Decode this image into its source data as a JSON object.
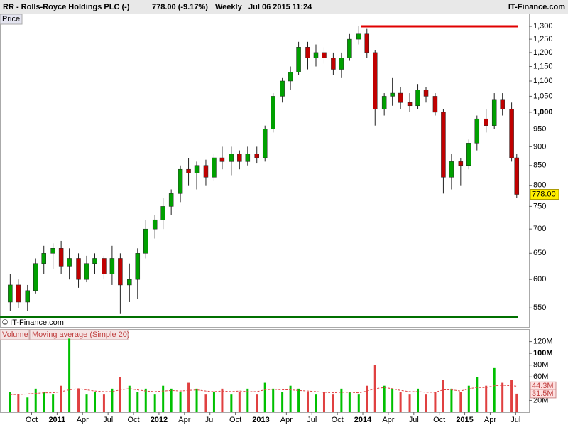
{
  "header": {
    "title": "RR - Rolls-Royce Holdings PLC (-)",
    "quote": "778.00 (-9.17%)",
    "period": "Weekly",
    "date": "Jul 06 2015 11:24",
    "brand": "IT-Finance.com"
  },
  "chart_data": [
    {
      "type": "candlestick",
      "tab": "Price",
      "copyright": "© IT-Finance.com",
      "log_scale": true,
      "up_color": "#00a000",
      "down_color": "#c00000",
      "x": [
        2010.54,
        2010.62,
        2010.71,
        2010.79,
        2010.87,
        2010.96,
        2011.04,
        2011.12,
        2011.21,
        2011.29,
        2011.37,
        2011.46,
        2011.54,
        2011.62,
        2011.71,
        2011.79,
        2011.87,
        2011.96,
        2012.04,
        2012.12,
        2012.21,
        2012.29,
        2012.37,
        2012.46,
        2012.54,
        2012.62,
        2012.71,
        2012.79,
        2012.87,
        2012.96,
        2013.04,
        2013.12,
        2013.21,
        2013.29,
        2013.37,
        2013.46,
        2013.54,
        2013.62,
        2013.71,
        2013.79,
        2013.87,
        2013.96,
        2014.04,
        2014.12,
        2014.21,
        2014.29,
        2014.37,
        2014.46,
        2014.54,
        2014.62,
        2014.71,
        2014.79,
        2014.87,
        2014.96,
        2015.04,
        2015.12,
        2015.21,
        2015.29,
        2015.37,
        2015.46,
        2015.51
      ],
      "open": [
        560,
        590,
        560,
        580,
        630,
        650,
        660,
        625,
        640,
        600,
        630,
        640,
        610,
        640,
        590,
        600,
        650,
        700,
        720,
        750,
        780,
        840,
        830,
        850,
        820,
        870,
        860,
        880,
        860,
        880,
        870,
        950,
        1050,
        1100,
        1130,
        1220,
        1180,
        1200,
        1180,
        1140,
        1180,
        1250,
        1270,
        1200,
        1010,
        1050,
        1060,
        1030,
        1020,
        1070,
        1050,
        1000,
        820,
        860,
        850,
        910,
        980,
        960,
        1040,
        1010,
        870
      ],
      "high": [
        610,
        600,
        590,
        640,
        665,
        670,
        675,
        660,
        650,
        645,
        650,
        645,
        665,
        650,
        630,
        660,
        720,
        730,
        770,
        790,
        850,
        870,
        860,
        865,
        880,
        900,
        900,
        890,
        900,
        900,
        960,
        1060,
        1110,
        1150,
        1240,
        1240,
        1230,
        1220,
        1200,
        1200,
        1270,
        1300,
        1290,
        1210,
        1060,
        1110,
        1080,
        1060,
        1090,
        1080,
        1060,
        1010,
        880,
        870,
        920,
        990,
        1010,
        1060,
        1060,
        1030,
        880
      ],
      "low": [
        545,
        550,
        545,
        575,
        610,
        620,
        610,
        600,
        585,
        595,
        610,
        600,
        590,
        540,
        560,
        565,
        640,
        680,
        700,
        730,
        760,
        800,
        790,
        800,
        810,
        840,
        825,
        840,
        850,
        855,
        860,
        940,
        1030,
        1070,
        1120,
        1140,
        1150,
        1160,
        1120,
        1110,
        1170,
        1230,
        1180,
        960,
        990,
        1020,
        1010,
        1000,
        1010,
        1030,
        990,
        780,
        790,
        800,
        840,
        890,
        940,
        950,
        990,
        860,
        770
      ],
      "close": [
        590,
        560,
        580,
        630,
        650,
        660,
        625,
        640,
        600,
        630,
        640,
        610,
        640,
        590,
        600,
        650,
        700,
        720,
        750,
        780,
        840,
        830,
        850,
        820,
        870,
        860,
        880,
        860,
        880,
        870,
        950,
        1050,
        1100,
        1130,
        1220,
        1180,
        1200,
        1180,
        1140,
        1180,
        1250,
        1270,
        1200,
        1010,
        1050,
        1060,
        1030,
        1020,
        1070,
        1050,
        1000,
        820,
        860,
        850,
        910,
        980,
        960,
        1040,
        1010,
        870,
        778
      ],
      "last_label": "778.00",
      "xlim": [
        2010.44,
        2015.63
      ],
      "ylim": [
        519,
        1349
      ],
      "yticks": [
        550,
        600,
        650,
        700,
        750,
        800,
        850,
        900,
        950,
        {
          "value": 1000,
          "label": "1,000"
        },
        {
          "value": 1050,
          "label": "1,050"
        },
        {
          "value": 1100,
          "label": "1,100"
        },
        {
          "value": 1150,
          "label": "1,150"
        },
        {
          "value": 1200,
          "label": "1,200"
        },
        {
          "value": 1250,
          "label": "1,250"
        },
        {
          "value": 1300,
          "label": "1,300"
        }
      ],
      "resistance": {
        "value": 1300,
        "from": 2013.98,
        "to": 2015.52,
        "color": "#e00000"
      },
      "support": {
        "value": 535,
        "from": 2010.44,
        "to": 2015.52,
        "color": "#007000"
      }
    },
    {
      "type": "volume",
      "series": [
        {
          "name": "Volume",
          "color": "#00c000",
          "values": [
            35,
            30,
            25,
            40,
            35,
            30,
            45,
            125,
            40,
            30,
            35,
            30,
            40,
            60,
            45,
            35,
            40,
            30,
            45,
            40,
            35,
            50,
            40,
            30,
            35,
            40,
            30,
            35,
            40,
            30,
            50,
            40,
            35,
            45,
            40,
            35,
            30,
            35,
            30,
            40,
            35,
            30,
            45,
            80,
            45,
            40,
            35,
            30,
            40,
            30,
            35,
            55,
            40,
            35,
            45,
            60,
            45,
            75,
            50,
            55,
            31.5
          ],
          "value_labels_last": "31.5M"
        },
        {
          "name": "Moving average (Simple 20)",
          "color": "#e04040",
          "values": [
            30,
            30,
            31,
            32,
            33,
            33,
            35,
            38,
            40,
            38,
            36,
            35,
            35,
            38,
            40,
            38,
            36,
            35,
            36,
            37,
            36,
            37,
            38,
            36,
            35,
            36,
            35,
            36,
            35,
            35,
            38,
            39,
            38,
            38,
            37,
            36,
            35,
            34,
            33,
            34,
            34,
            33,
            36,
            40,
            42,
            40,
            37,
            35,
            35,
            34,
            34,
            38,
            38,
            36,
            40,
            42,
            42,
            45,
            46,
            45,
            44.3
          ],
          "value_labels_last": "44.3M"
        }
      ],
      "ylim": [
        0,
        140
      ],
      "yticks": [
        {
          "value": 20,
          "label": "20M"
        },
        {
          "value": 60,
          "label": "60M"
        },
        {
          "value": 80,
          "label": "80M"
        },
        {
          "value": 100,
          "label": "100M"
        },
        {
          "value": 120,
          "label": "120M"
        }
      ],
      "xticks": [
        {
          "value": 2010.75,
          "label": "Oct"
        },
        2011,
        {
          "value": 2011.25,
          "label": "Apr"
        },
        {
          "value": 2011.5,
          "label": "Jul"
        },
        {
          "value": 2011.75,
          "label": "Oct"
        },
        2012,
        {
          "value": 2012.25,
          "label": "Apr"
        },
        {
          "value": 2012.5,
          "label": "Jul"
        },
        {
          "value": 2012.75,
          "label": "Oct"
        },
        2013,
        {
          "value": 2013.25,
          "label": "Apr"
        },
        {
          "value": 2013.5,
          "label": "Jul"
        },
        {
          "value": 2013.75,
          "label": "Oct"
        },
        2014,
        {
          "value": 2014.25,
          "label": "Apr"
        },
        {
          "value": 2014.5,
          "label": "Jul"
        },
        {
          "value": 2014.75,
          "label": "Oct"
        },
        2015,
        {
          "value": 2015.25,
          "label": "Apr"
        },
        {
          "value": 2015.5,
          "label": "Jul"
        }
      ]
    }
  ]
}
